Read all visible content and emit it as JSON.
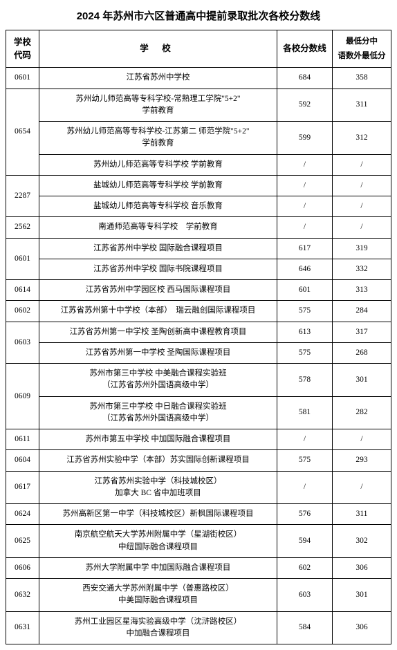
{
  "title": "2024 年苏州市六区普通高中提前录取批次各校分数线",
  "headers": {
    "code": "学校代码",
    "school": "学 校",
    "score": "各校分数线",
    "min": "最低分中语数外最低分"
  },
  "groups": [
    {
      "code": "0601",
      "rows": [
        {
          "school": "江苏省苏州中学校",
          "score": "684",
          "min": "358"
        }
      ]
    },
    {
      "code": "0654",
      "rows": [
        {
          "school": "苏州幼儿师范高等专科学校-常熟理工学院\"5+2\"\n学前教育",
          "score": "592",
          "min": "311"
        },
        {
          "school": "苏州幼儿师范高等专科学校-江苏第二 师范学院\"5+2\"\n学前教育",
          "score": "599",
          "min": "312"
        },
        {
          "school": "苏州幼儿师范高等专科学校 学前教育",
          "score": "/",
          "min": "/"
        }
      ]
    },
    {
      "code": "2287",
      "rows": [
        {
          "school": "盐城幼儿师范高等专科学校 学前教育",
          "score": "/",
          "min": "/"
        },
        {
          "school": "盐城幼儿师范高等专科学校 音乐教育",
          "score": "/",
          "min": "/"
        }
      ]
    },
    {
      "code": "2562",
      "rows": [
        {
          "school": "南通师范高等专科学校　学前教育",
          "score": "/",
          "min": "/"
        }
      ]
    },
    {
      "code": "0601",
      "rows": [
        {
          "school": "江苏省苏州中学校 国际融合课程项目",
          "score": "617",
          "min": "319"
        },
        {
          "school": "江苏省苏州中学校 国际书院课程项目",
          "score": "646",
          "min": "332"
        }
      ]
    },
    {
      "code": "0614",
      "rows": [
        {
          "school": "江苏省苏州中学园区校 西马国际课程项目",
          "score": "601",
          "min": "313"
        }
      ]
    },
    {
      "code": "0602",
      "rows": [
        {
          "school": "江苏省苏州第十中学校（本部）　瑞云融创国际课程项目",
          "score": "575",
          "min": "284"
        }
      ]
    },
    {
      "code": "0603",
      "rows": [
        {
          "school": "江苏省苏州第一中学校 圣陶创新高中课程教育项目",
          "score": "613",
          "min": "317"
        },
        {
          "school": "江苏省苏州第一中学校 圣陶国际课程项目",
          "score": "575",
          "min": "268"
        }
      ]
    },
    {
      "code": "0609",
      "rows": [
        {
          "school": "苏州市第三中学校 中美融合课程实验班\n（江苏省苏州外国语高级中学）",
          "score": "578",
          "min": "301"
        },
        {
          "school": "苏州市第三中学校 中日融合课程实验班\n（江苏省苏州外国语高级中学）",
          "score": "581",
          "min": "282"
        }
      ]
    },
    {
      "code": "0611",
      "rows": [
        {
          "school": "苏州市第五中学校 中加国际融合课程项目",
          "score": "/",
          "min": "/"
        }
      ]
    },
    {
      "code": "0604",
      "rows": [
        {
          "school": "江苏省苏州实验中学（本部）苏实国际创新课程项目",
          "score": "575",
          "min": "293"
        }
      ]
    },
    {
      "code": "0617",
      "rows": [
        {
          "school": "江苏省苏州实验中学（科技城校区）\n加拿大 BC 省中加班项目",
          "score": "/",
          "min": "/"
        }
      ]
    },
    {
      "code": "0624",
      "rows": [
        {
          "school": "苏州高新区第一中学（科技城校区）新枫国际课程项目",
          "score": "576",
          "min": "311"
        }
      ]
    },
    {
      "code": "0625",
      "rows": [
        {
          "school": "南京航空航天大学苏州附属中学（星湖街校区）\n中纽国际融合课程项目",
          "score": "594",
          "min": "302"
        }
      ]
    },
    {
      "code": "0606",
      "rows": [
        {
          "school": "苏州大学附属中学 中加国际融合课程项目",
          "score": "602",
          "min": "306"
        }
      ]
    },
    {
      "code": "0632",
      "rows": [
        {
          "school": "西安交通大学苏州附属中学（普惠路校区）\n中美国际融合课程项目",
          "score": "603",
          "min": "301"
        }
      ]
    },
    {
      "code": "0631",
      "rows": [
        {
          "school": "苏州工业园区星海实验高级中学（沈浒路校区）\n中加融合课程项目",
          "score": "584",
          "min": "306"
        }
      ]
    }
  ]
}
